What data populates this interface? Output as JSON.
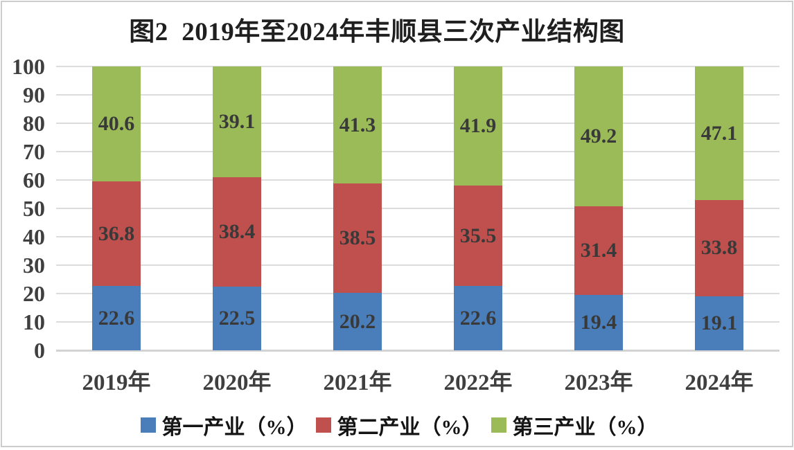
{
  "chart_data": {
    "type": "bar",
    "stacked": true,
    "title": "图2  2019年至2024年丰顺县三次产业结构图",
    "categories": [
      "2019年",
      "2020年",
      "2021年",
      "2022年",
      "2023年",
      "2024年"
    ],
    "series": [
      {
        "name": "第一产业（%）",
        "color": "#4a7ebb",
        "values": [
          22.6,
          22.5,
          20.2,
          22.6,
          19.4,
          19.1
        ]
      },
      {
        "name": "第二产业（%）",
        "color": "#c0504d",
        "values": [
          36.8,
          38.4,
          38.5,
          35.5,
          31.4,
          33.8
        ]
      },
      {
        "name": "第三产业（%）",
        "color": "#9bbb59",
        "values": [
          40.6,
          39.1,
          41.3,
          41.9,
          49.2,
          47.1
        ]
      }
    ],
    "ylim": [
      0,
      100
    ],
    "yticks": [
      0,
      10,
      20,
      30,
      40,
      50,
      60,
      70,
      80,
      90,
      100
    ],
    "grid": true,
    "gridline_color": "#dcdcdc",
    "axis_line_color": "#d3d3d3",
    "data_label_color": "#393939",
    "legend_position": "bottom"
  }
}
